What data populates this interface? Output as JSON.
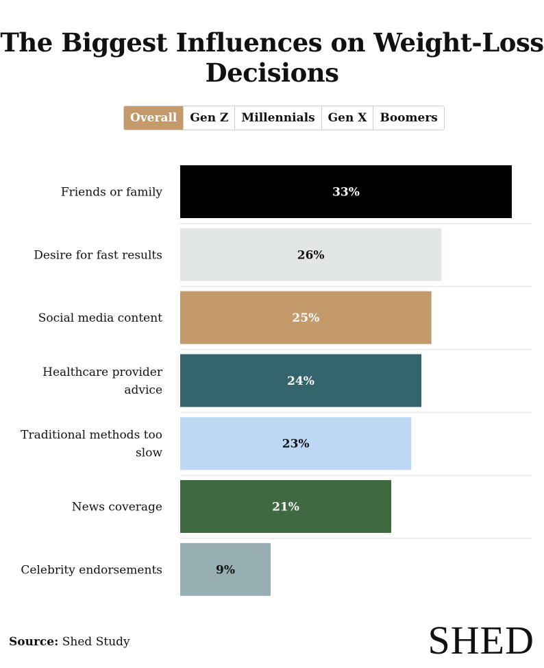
{
  "title": "The Biggest Influences on Weight-Loss Decisions",
  "tabs": [
    {
      "label": "Overall",
      "active": true
    },
    {
      "label": "Gen Z",
      "active": false
    },
    {
      "label": "Millennials",
      "active": false
    },
    {
      "label": "Gen X",
      "active": false
    },
    {
      "label": "Boomers",
      "active": false
    }
  ],
  "chart_data": {
    "type": "bar",
    "orientation": "horizontal",
    "title": "The Biggest Influences on Weight-Loss Decisions",
    "categories": [
      "Friends or family",
      "Desire for fast results",
      "Social media content",
      "Healthcare provider advice",
      "Traditional methods too slow",
      "News coverage",
      "Celebrity endorsements"
    ],
    "values": [
      33,
      26,
      25,
      24,
      23,
      21,
      9
    ],
    "value_labels": [
      "33%",
      "26%",
      "25%",
      "24%",
      "23%",
      "21%",
      "9%"
    ],
    "colors": [
      "#000000",
      "#e3e6e7",
      "#c49a6a",
      "#35656c",
      "#bcd8f5",
      "#3f6940",
      "#97aeb3"
    ],
    "label_colors": [
      "#ffffff",
      "#111111",
      "#ffffff",
      "#ffffff",
      "#111111",
      "#ffffff",
      "#111111"
    ],
    "xlim": [
      0,
      33
    ],
    "grid": false,
    "xlabel": "",
    "ylabel": ""
  },
  "source": {
    "label": "Source:",
    "text": "Shed Study"
  },
  "logo": {
    "text": "SHED"
  }
}
